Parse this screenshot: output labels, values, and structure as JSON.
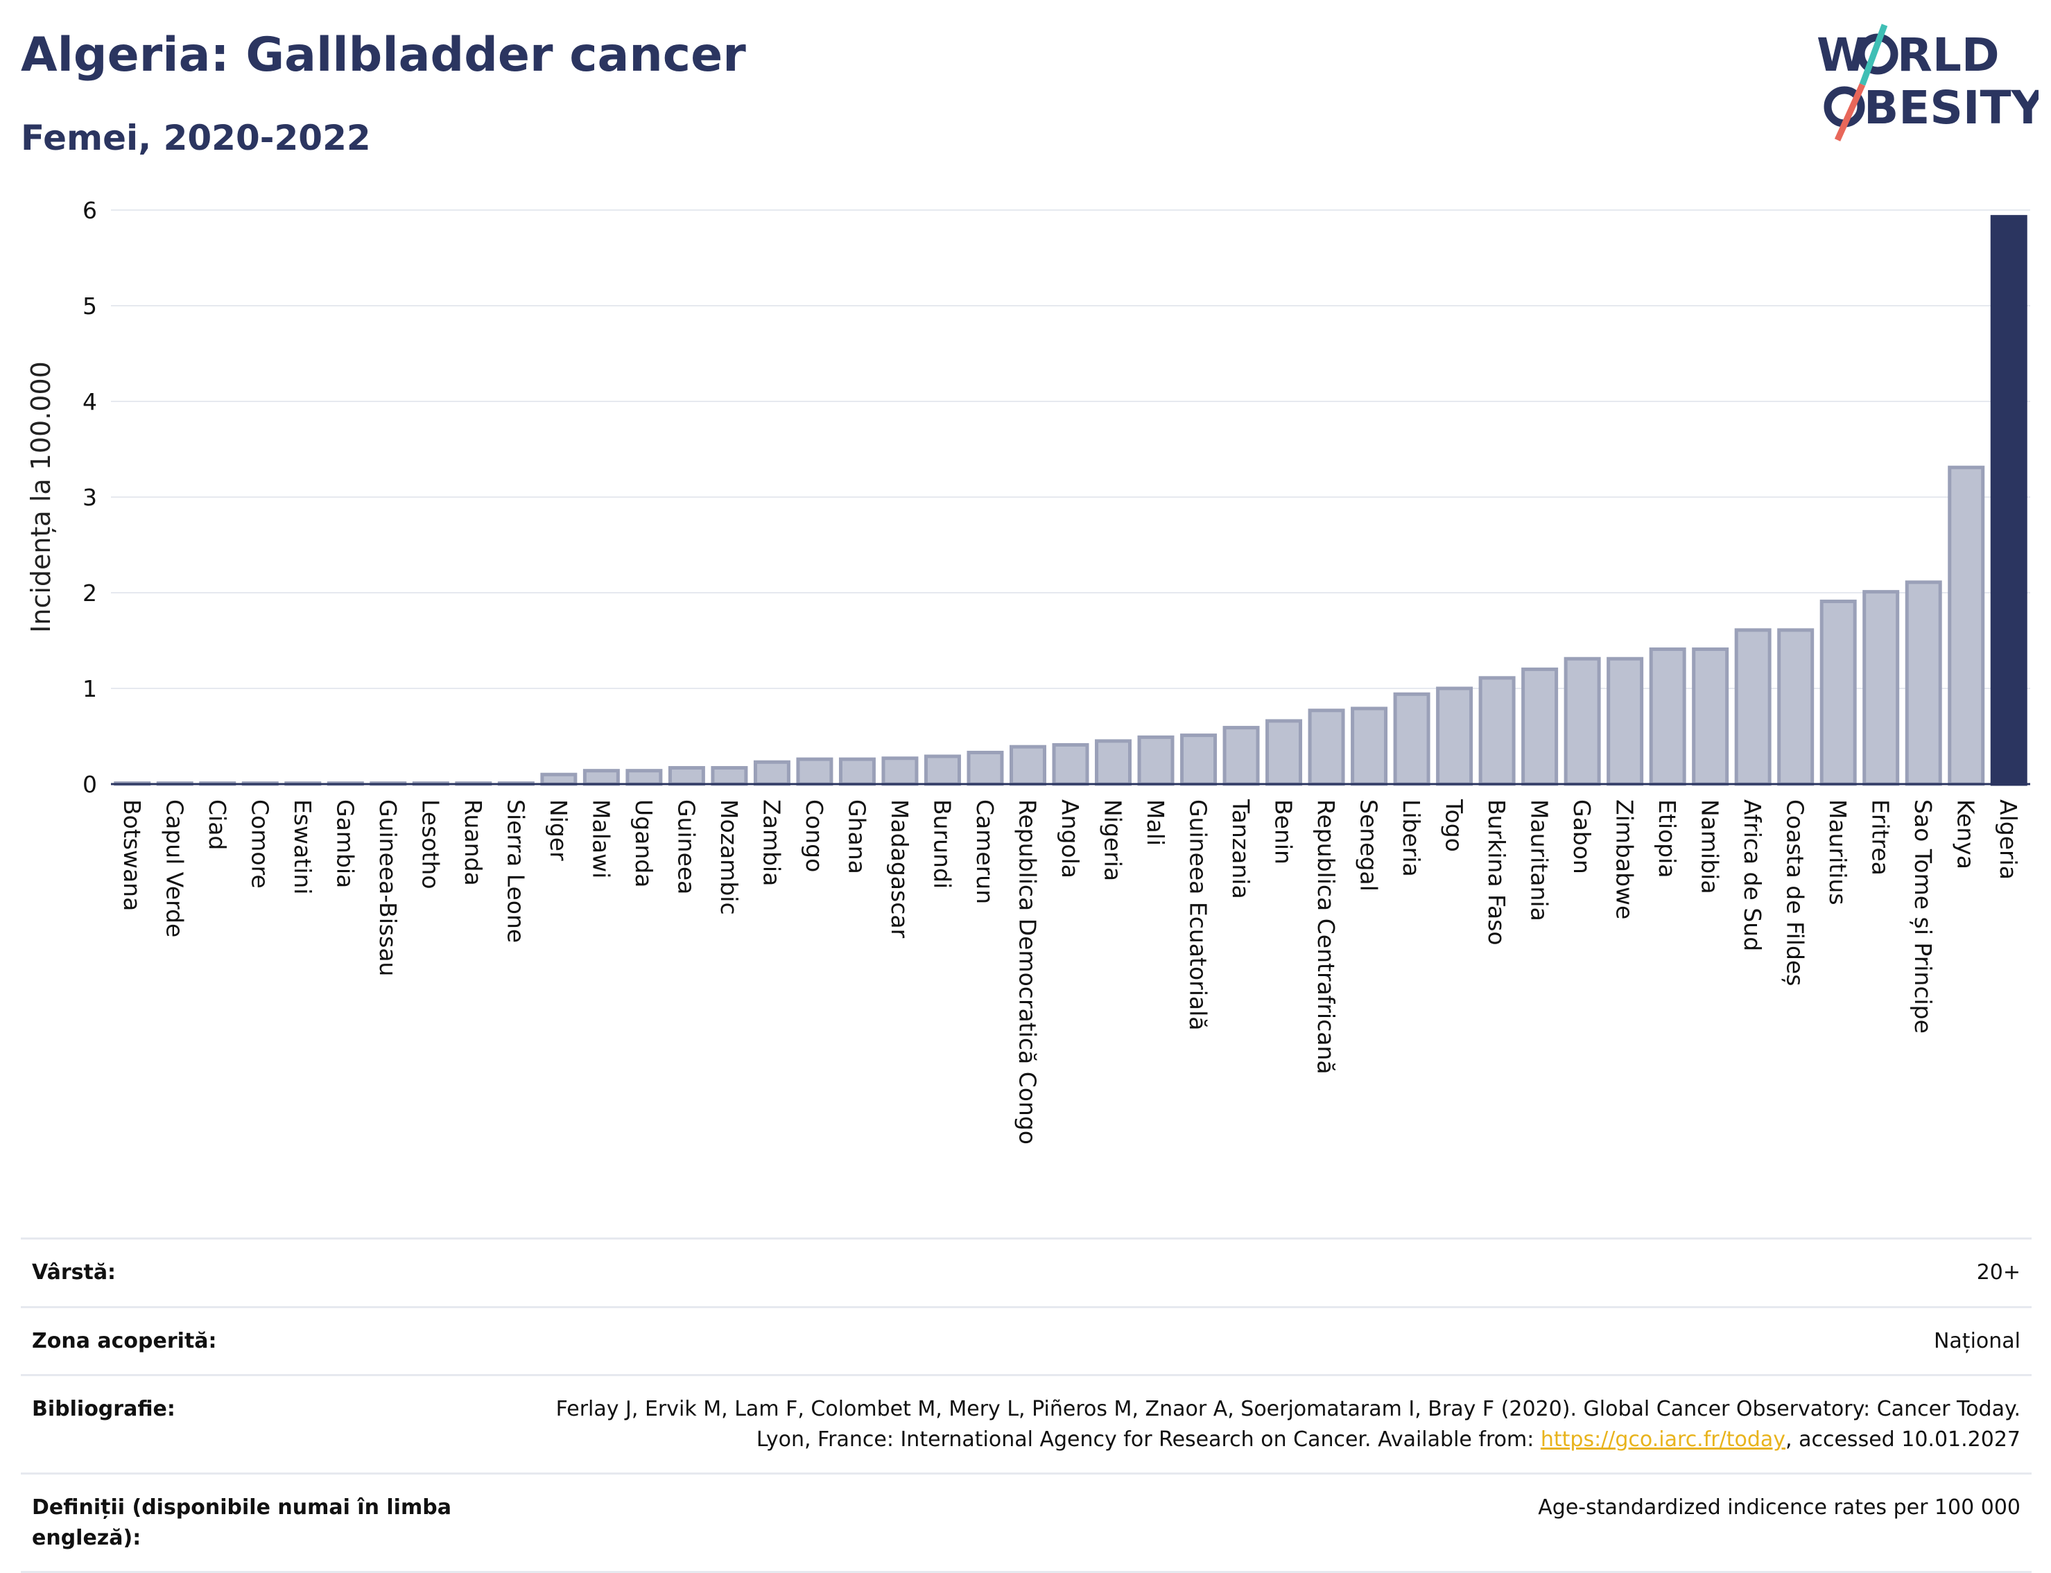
{
  "header": {
    "title": "Algeria: Gallbladder cancer",
    "subtitle": "Femei, 2020-2022"
  },
  "logo": {
    "line1": "W",
    "line1_rest": "RLD",
    "line2": "BESITY",
    "accent_colors": [
      "#3fbfb5",
      "#e8675a"
    ]
  },
  "colors": {
    "bar_fill": "#bcc1d1",
    "bar_stroke": "#9aa0b8",
    "highlight": "#2b3560",
    "grid": "#e6e9ef",
    "link": "#e8b31c"
  },
  "chart_data": {
    "type": "bar",
    "title": "Algeria: Gallbladder cancer",
    "subtitle": "Femei, 2020-2022",
    "ylabel": "Incidența la 100.000",
    "xlabel": "",
    "ylim": [
      0,
      6
    ],
    "yticks": [
      0,
      1,
      2,
      3,
      4,
      5,
      6
    ],
    "grid": true,
    "highlight_category": "Algeria",
    "categories": [
      "Botswana",
      "Capul Verde",
      "Ciad",
      "Comore",
      "Eswatini",
      "Gambia",
      "Guineea-Bissau",
      "Lesotho",
      "Ruanda",
      "Sierra Leone",
      "Niger",
      "Malawi",
      "Uganda",
      "Guineea",
      "Mozambic",
      "Zambia",
      "Congo",
      "Ghana",
      "Madagascar",
      "Burundi",
      "Camerun",
      "Republica Democratică Congo",
      "Angola",
      "Nigeria",
      "Mali",
      "Guineea Ecuatorială",
      "Tanzania",
      "Benin",
      "Republica Centrafricană",
      "Senegal",
      "Liberia",
      "Togo",
      "Burkina Faso",
      "Mauritania",
      "Gabon",
      "Zimbabwe",
      "Etiopia",
      "Namibia",
      "Africa de Sud",
      "Coasta de Fildeș",
      "Mauritius",
      "Eritrea",
      "Sao Tome și Principe",
      "Kenya",
      "Algeria"
    ],
    "values": [
      0.01,
      0.01,
      0.01,
      0.01,
      0.01,
      0.01,
      0.01,
      0.01,
      0.01,
      0.01,
      0.1,
      0.14,
      0.14,
      0.17,
      0.17,
      0.23,
      0.26,
      0.26,
      0.27,
      0.29,
      0.33,
      0.39,
      0.41,
      0.45,
      0.49,
      0.51,
      0.59,
      0.66,
      0.77,
      0.79,
      0.94,
      1.0,
      1.11,
      1.2,
      1.31,
      1.31,
      1.41,
      1.41,
      1.61,
      1.61,
      1.91,
      2.01,
      2.11,
      3.31,
      5.93
    ]
  },
  "meta": [
    {
      "label": "Vârstă:",
      "value": "20+"
    },
    {
      "label": "Zona acoperită:",
      "value": "Național"
    },
    {
      "label": "Bibliografie:",
      "value_before": "Ferlay J, Ervik M, Lam F, Colombet M, Mery L, Piñeros M, Znaor A, Soerjomataram I, Bray F (2020). Global Cancer Observatory: Cancer Today. Lyon, France: International Agency for Research on Cancer. Available from: ",
      "link": "https://gco.iarc.fr/today",
      "value_after": ", accessed 10.01.2027"
    },
    {
      "label": "Definiții (disponibile numai în limba engleză):",
      "value": "Age-standardized indicence rates per 100 000"
    }
  ]
}
